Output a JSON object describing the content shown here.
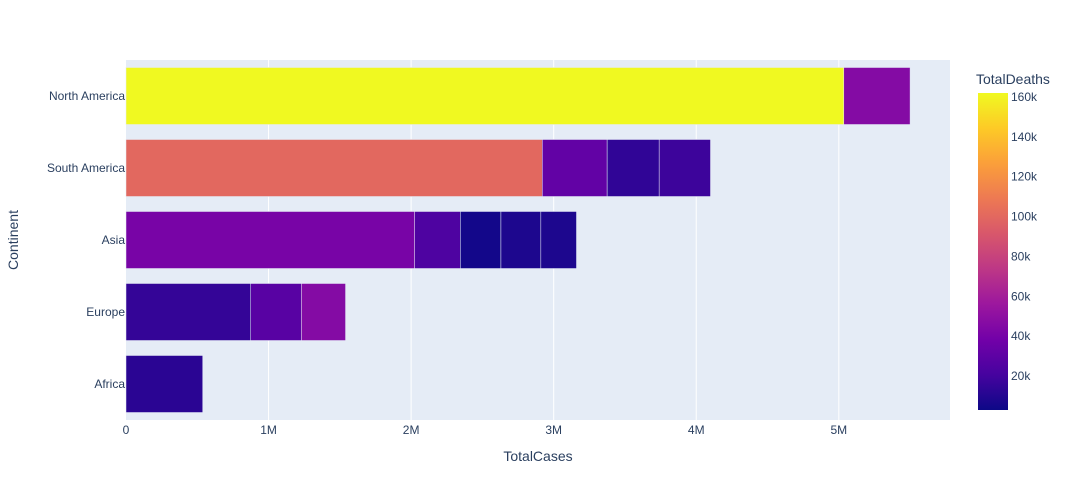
{
  "chart_data": {
    "type": "bar",
    "orientation": "horizontal",
    "barmode": "stack",
    "xlabel": "TotalCases",
    "ylabel": "Continent",
    "xlim": [
      0,
      5780000
    ],
    "x_ticks": [
      {
        "value": 0,
        "label": "0"
      },
      {
        "value": 1000000,
        "label": "1M"
      },
      {
        "value": 2000000,
        "label": "2M"
      },
      {
        "value": 3000000,
        "label": "3M"
      },
      {
        "value": 4000000,
        "label": "4M"
      },
      {
        "value": 5000000,
        "label": "5M"
      }
    ],
    "categories": [
      "Africa",
      "Europe",
      "Asia",
      "South America",
      "North America"
    ],
    "segments": [
      {
        "category": "Africa",
        "cases": 538000,
        "deaths": 12000
      },
      {
        "category": "Europe",
        "cases": 875000,
        "deaths": 15000
      },
      {
        "category": "Europe",
        "cases": 355000,
        "deaths": 28000
      },
      {
        "category": "Europe",
        "cases": 310000,
        "deaths": 46000
      },
      {
        "category": "Asia",
        "cases": 2025000,
        "deaths": 41000
      },
      {
        "category": "Asia",
        "cases": 320000,
        "deaths": 24000
      },
      {
        "category": "Asia",
        "cases": 285000,
        "deaths": 5000
      },
      {
        "category": "Asia",
        "cases": 280000,
        "deaths": 8000
      },
      {
        "category": "Asia",
        "cases": 250000,
        "deaths": 8000
      },
      {
        "category": "South America",
        "cases": 2920000,
        "deaths": 100000
      },
      {
        "category": "South America",
        "cases": 455000,
        "deaths": 32000
      },
      {
        "category": "South America",
        "cases": 365000,
        "deaths": 14000
      },
      {
        "category": "South America",
        "cases": 360000,
        "deaths": 18000
      },
      {
        "category": "North America",
        "cases": 5035000,
        "deaths": 162000
      },
      {
        "category": "North America",
        "cases": 465000,
        "deaths": 46000
      }
    ],
    "colorbar": {
      "title": "TotalDeaths",
      "range": [
        3000,
        162000
      ],
      "ticks": [
        {
          "value": 20000,
          "label": "20k"
        },
        {
          "value": 40000,
          "label": "40k"
        },
        {
          "value": 60000,
          "label": "60k"
        },
        {
          "value": 80000,
          "label": "80k"
        },
        {
          "value": 100000,
          "label": "100k"
        },
        {
          "value": 120000,
          "label": "120k"
        },
        {
          "value": 140000,
          "label": "140k"
        },
        {
          "value": 160000,
          "label": "160k"
        }
      ],
      "colorscale": [
        "#0d0887",
        "#46039f",
        "#7201a8",
        "#9c179e",
        "#bd3786",
        "#d8576b",
        "#ed7953",
        "#fb9f3a",
        "#fdca26",
        "#f0f921"
      ]
    },
    "colors": {
      "plot_bg": "#e5ecf6",
      "grid": "#ffffff",
      "text": "#2a3f5f",
      "bar_outline": "#e5ecf6"
    }
  }
}
